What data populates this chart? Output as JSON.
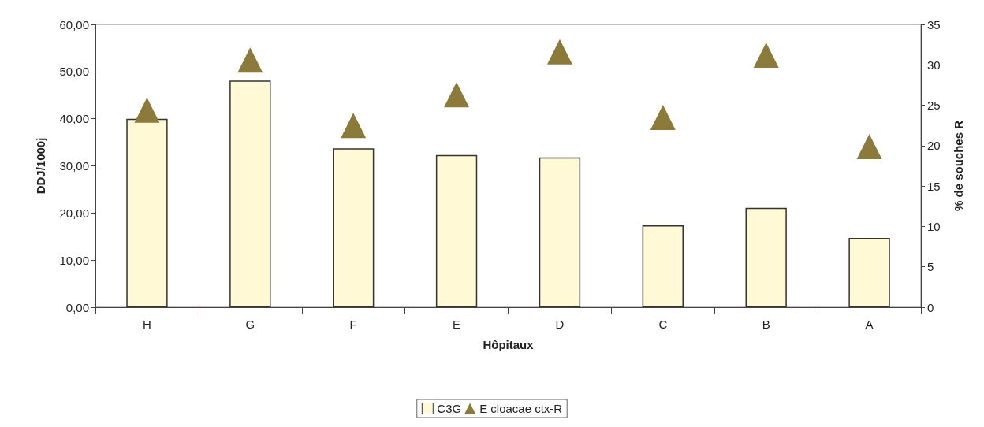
{
  "chart_data": {
    "type": "bar",
    "xlabel": "Hôpitaux",
    "ylabel": "DDJ/1000j",
    "y2label": "% de souches R",
    "categories": [
      "H",
      "G",
      "F",
      "E",
      "D",
      "C",
      "B",
      "A"
    ],
    "series": [
      {
        "name": "C3G",
        "color": "#fff9d5",
        "values": [
          40.0,
          48.1,
          33.7,
          32.3,
          31.8,
          17.4,
          21.1,
          14.7
        ]
      },
      {
        "name": "E cloacae ctx-R",
        "type": "scatter",
        "axis": "y2",
        "marker": "triangle",
        "color": "#8b7a3a",
        "values": [
          24.4,
          30.6,
          22.5,
          26.3,
          31.6,
          23.5,
          31.2,
          19.9
        ]
      }
    ],
    "ylim": [
      0,
      60
    ],
    "yticks": [
      {
        "value": 0,
        "label": "0,00"
      },
      {
        "value": 10,
        "label": "10,00"
      },
      {
        "value": 20,
        "label": "20,00"
      },
      {
        "value": 30,
        "label": "30,00"
      },
      {
        "value": 40,
        "label": "40,00"
      },
      {
        "value": 50,
        "label": "50,00"
      },
      {
        "value": 60,
        "label": "60,00"
      }
    ],
    "y2lim": [
      0,
      35
    ],
    "y2ticks": [
      0,
      5,
      10,
      15,
      20,
      25,
      30,
      35
    ],
    "grid": false,
    "legend": "bottom"
  }
}
